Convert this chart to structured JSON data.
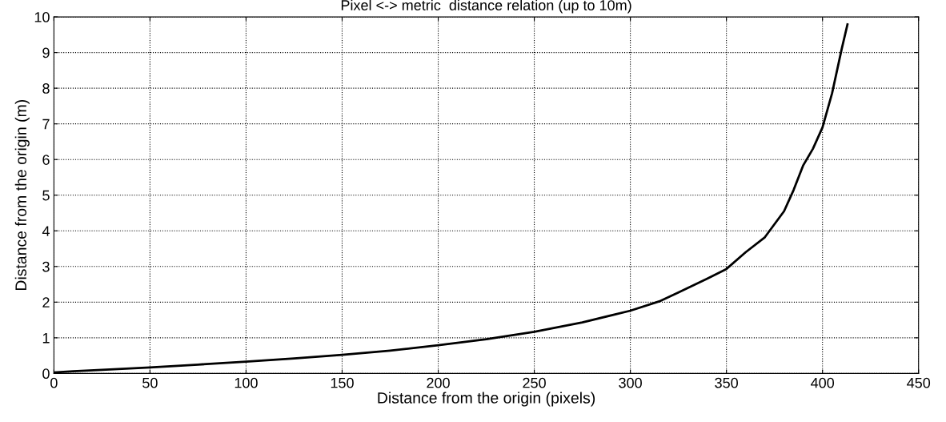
{
  "chart_data": {
    "type": "line",
    "title": "Pixel <-> metric  distance relation (up to 10m)",
    "xlabel": "Distance from the origin (pixels)",
    "ylabel": "Distance from the origin (m)",
    "series": [
      {
        "color": "#000000",
        "x": [
          0,
          10,
          25,
          50,
          75,
          100,
          125,
          150,
          175,
          200,
          225,
          250,
          275,
          300,
          315,
          325,
          340,
          350,
          360,
          370,
          380,
          385,
          390,
          395,
          400,
          405,
          410,
          413
        ],
        "values": [
          0.03,
          0.06,
          0.1,
          0.17,
          0.25,
          0.33,
          0.42,
          0.52,
          0.64,
          0.79,
          0.96,
          1.17,
          1.43,
          1.76,
          2.02,
          2.27,
          2.66,
          2.93,
          3.4,
          3.82,
          4.55,
          5.15,
          5.84,
          6.3,
          6.9,
          7.86,
          9.1,
          9.79
        ]
      }
    ],
    "xlim": [
      0,
      450
    ],
    "ylim": [
      0,
      10
    ],
    "xticks": [
      0,
      50,
      100,
      150,
      200,
      250,
      300,
      350,
      400,
      450
    ],
    "yticks": [
      0,
      1,
      2,
      3,
      4,
      5,
      6,
      7,
      8,
      9,
      10
    ],
    "grid": true,
    "marker": "none",
    "line_style": "solid"
  }
}
